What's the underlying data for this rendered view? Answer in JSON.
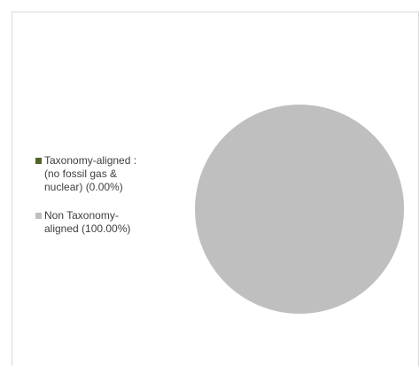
{
  "chart_data": {
    "type": "pie",
    "title": "",
    "legend_position": "left",
    "series": [
      {
        "values": [
          0.0,
          100.0
        ],
        "colors": [
          "#4f6228",
          "#bfbfbf"
        ]
      }
    ],
    "categories": [
      "Taxonomy-aligned :\n(no fossil gas &\nnuclear) (0.00%)",
      "Non Taxonomy-\naligned (100.00%)"
    ]
  }
}
